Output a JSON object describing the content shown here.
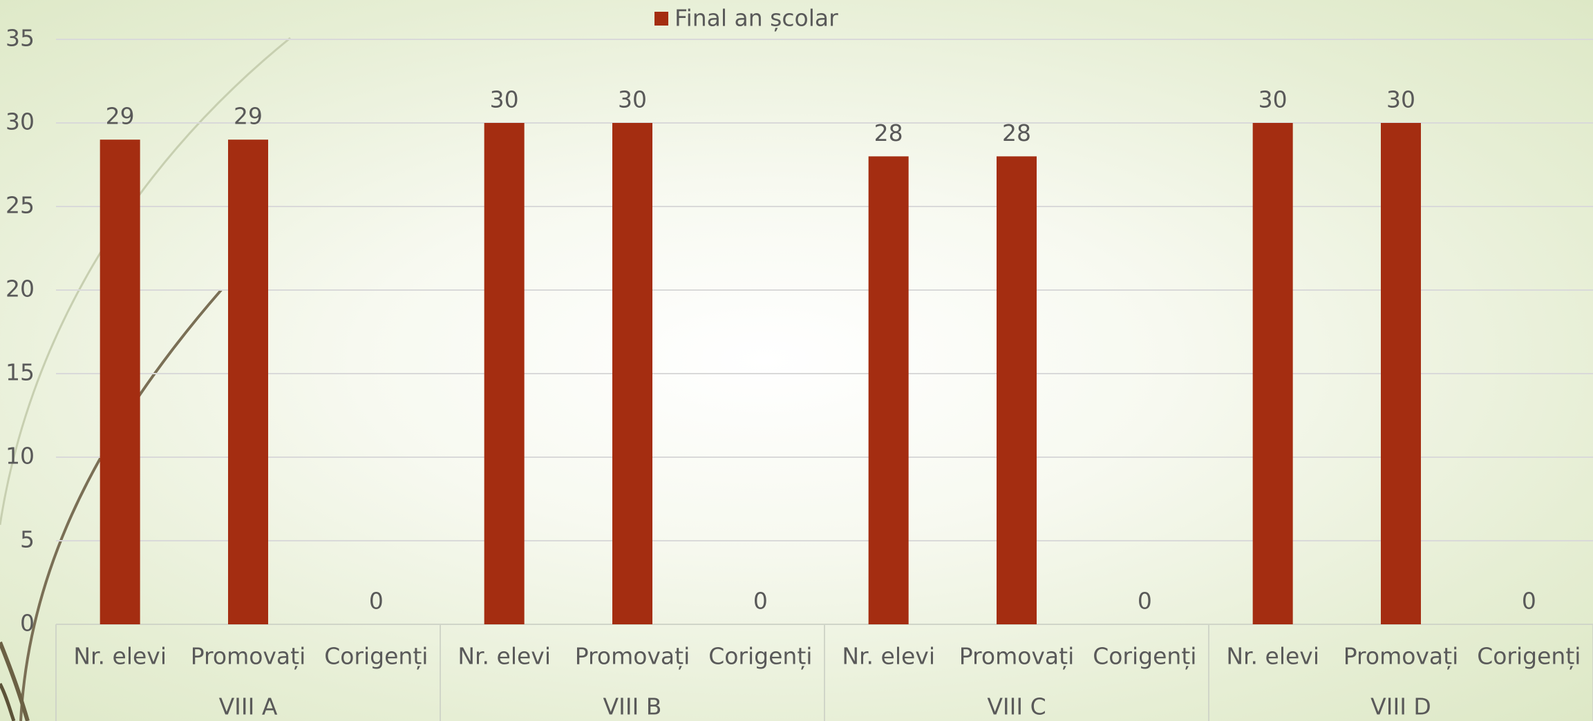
{
  "chart_data": {
    "type": "bar",
    "categories": [
      "Nr. elevi",
      "Promovați",
      "Corigenți",
      "Nr. elevi",
      "Promovați",
      "Corigenți",
      "Nr. elevi",
      "Promovați",
      "Corigenți",
      "Nr. elevi",
      "Promovați",
      "Corigenți"
    ],
    "groups": [
      "VIII A",
      "VIII B",
      "VIII C",
      "VIII D"
    ],
    "series": [
      {
        "name": "Final an școlar",
        "color": "#a42d11",
        "values": [
          29,
          29,
          0,
          30,
          30,
          0,
          28,
          28,
          0,
          30,
          30,
          0
        ]
      }
    ],
    "ylim": [
      0,
      35
    ],
    "yticks": [
      0,
      5,
      10,
      15,
      20,
      25,
      30,
      35
    ],
    "grid": true,
    "legend": "top"
  }
}
